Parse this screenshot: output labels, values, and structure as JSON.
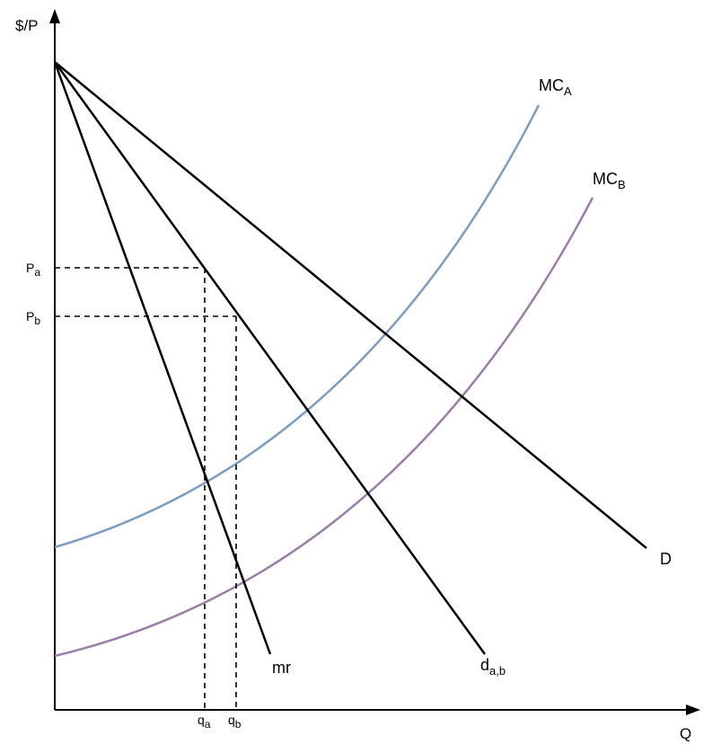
{
  "axes": {
    "y_label": "$/P",
    "x_label": "Q"
  },
  "price_ticks": [
    {
      "main": "P",
      "sub": "a"
    },
    {
      "main": "P",
      "sub": "b"
    }
  ],
  "quantity_ticks": [
    {
      "main": "q",
      "sub": "a"
    },
    {
      "main": "q",
      "sub": "b"
    }
  ],
  "curves": {
    "demand": {
      "label": "D"
    },
    "firm_demand": {
      "main": "d",
      "sub": "a,b"
    },
    "marginal_revenue": {
      "label": "mr"
    },
    "mc_a": {
      "main": "MC",
      "sub": "A",
      "color": "#7b9cc4",
      "label_color": "#2a7fd4"
    },
    "mc_b": {
      "main": "MC",
      "sub": "B",
      "color": "#9a7ea8",
      "label_color": "#7a3ed4"
    }
  },
  "colors": {
    "axis": "#000000",
    "line": "#000000"
  }
}
